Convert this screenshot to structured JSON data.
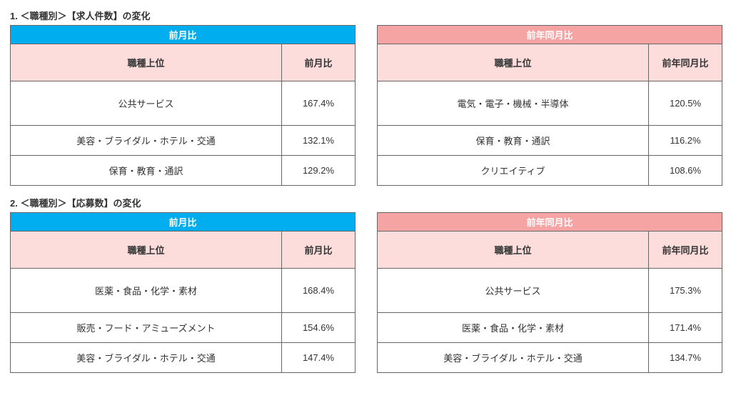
{
  "section1": {
    "title": "1. ＜職種別＞【求人件数】の変化",
    "left": {
      "header": "前月比",
      "sub_label": "職種上位",
      "sub_val": "前月比",
      "rows": [
        {
          "label": "公共サービス",
          "val": "167.4%"
        },
        {
          "label": "美容・ブライダル・ホテル・交通",
          "val": "132.1%"
        },
        {
          "label": "保育・教育・通訳",
          "val": "129.2%"
        }
      ]
    },
    "right": {
      "header": "前年同月比",
      "sub_label": "職種上位",
      "sub_val": "前年同月比",
      "rows": [
        {
          "label": "電気・電子・機械・半導体",
          "val": "120.5%"
        },
        {
          "label": "保育・教育・通訳",
          "val": "116.2%"
        },
        {
          "label": "クリエイティブ",
          "val": "108.6%"
        }
      ]
    }
  },
  "section2": {
    "title": "2. ＜職種別＞【応募数】の変化",
    "left": {
      "header": "前月比",
      "sub_label": "職種上位",
      "sub_val": "前月比",
      "rows": [
        {
          "label": "医薬・食品・化学・素材",
          "val": "168.4%"
        },
        {
          "label": "販売・フード・アミューズメント",
          "val": "154.6%"
        },
        {
          "label": "美容・ブライダル・ホテル・交通",
          "val": "147.4%"
        }
      ]
    },
    "right": {
      "header": "前年同月比",
      "sub_label": "職種上位",
      "sub_val": "前年同月比",
      "rows": [
        {
          "label": "公共サービス",
          "val": "175.3%"
        },
        {
          "label": "医薬・食品・化学・素材",
          "val": "171.4%"
        },
        {
          "label": "美容・ブライダル・ホテル・交通",
          "val": "134.7%"
        }
      ]
    }
  }
}
